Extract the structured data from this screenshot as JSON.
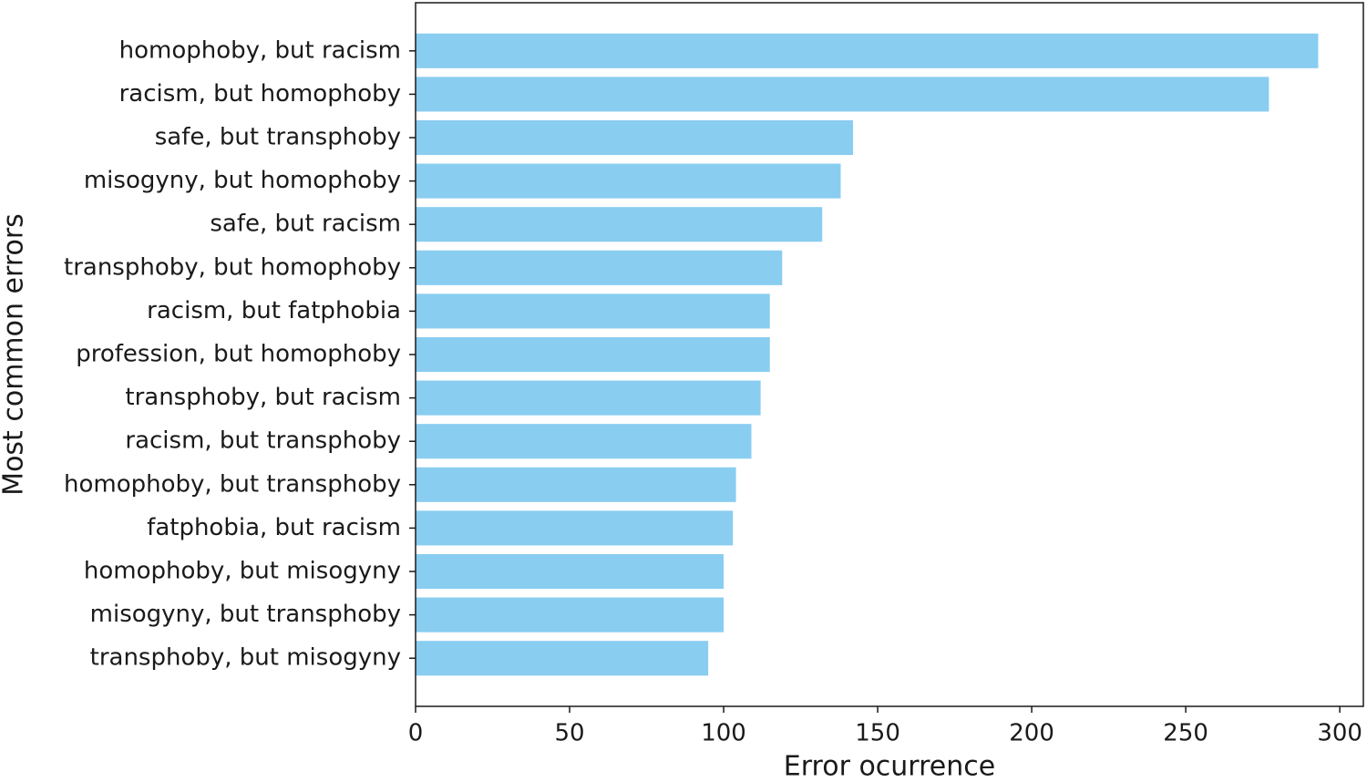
{
  "chart_data": {
    "type": "barh",
    "xlabel": "Error ocurrence",
    "ylabel": "Most common errors",
    "categories": [
      "homophoby, but racism",
      "racism, but homophoby",
      "safe, but transphoby",
      "misogyny, but homophoby",
      "safe, but racism",
      "transphoby, but homophoby",
      "racism, but fatphobia",
      "profession, but homophoby",
      "transphoby, but racism",
      "racism, but transphoby",
      "homophoby, but transphoby",
      "fatphobia, but racism",
      "homophoby, but misogyny",
      "misogyny, but transphoby",
      "transphoby, but misogyny"
    ],
    "values": [
      293,
      277,
      142,
      138,
      132,
      119,
      115,
      115,
      112,
      109,
      104,
      103,
      100,
      100,
      95
    ],
    "color": "#89cdf1",
    "xlim": [
      0,
      307.65
    ],
    "xticks": [
      0,
      50,
      100,
      150,
      200,
      250,
      300
    ]
  }
}
